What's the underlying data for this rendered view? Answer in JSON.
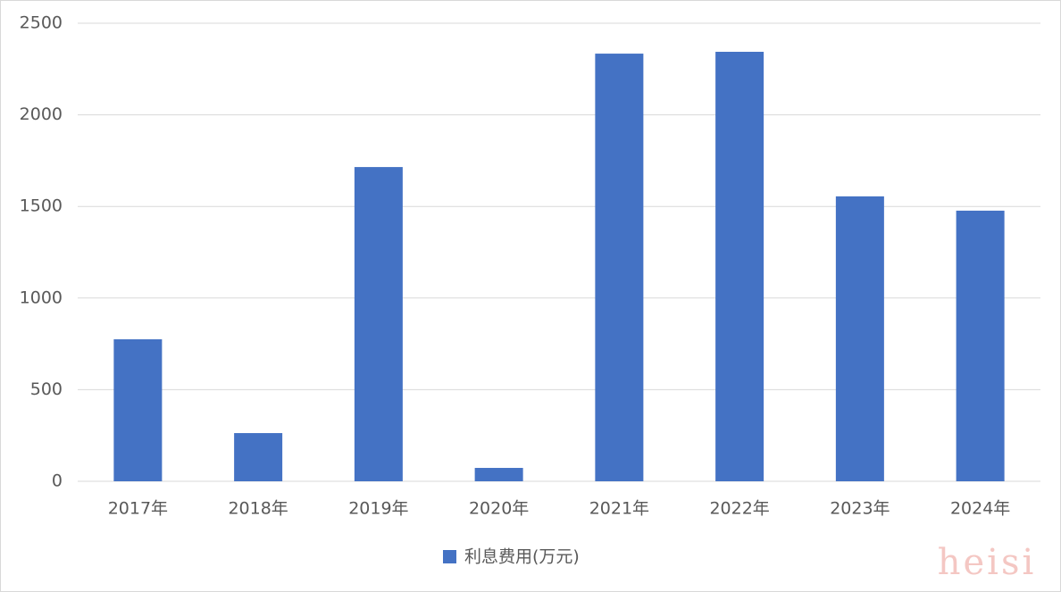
{
  "chart_data": {
    "type": "bar",
    "categories": [
      "2017年",
      "2018年",
      "2019年",
      "2020年",
      "2021年",
      "2022年",
      "2023年",
      "2024年"
    ],
    "series": [
      {
        "name": "利息费用(万元)",
        "color": "#4472c4",
        "values": [
          775,
          263,
          1715,
          73,
          2334,
          2344,
          1555,
          1477
        ]
      }
    ],
    "ylim": [
      0,
      2500
    ],
    "yticks": [
      0,
      500,
      1000,
      1500,
      2000,
      2500
    ],
    "grid": true,
    "legend": "bottom",
    "watermark": "heisi"
  }
}
